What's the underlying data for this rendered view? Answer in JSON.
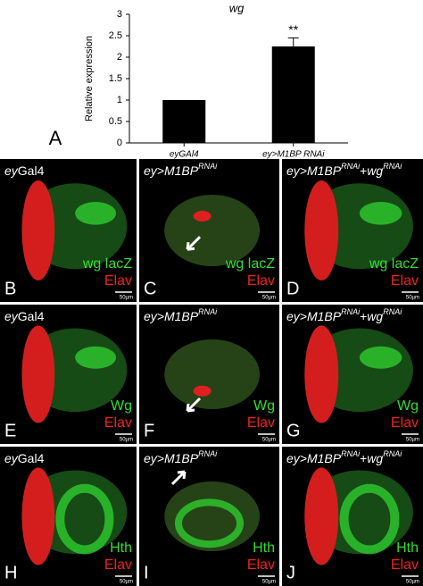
{
  "chart_data": {
    "type": "bar",
    "title": "wg",
    "panel_label": "A",
    "y_label": "Relative expression",
    "categories": [
      "eyGAl4",
      "ey>M1BP RNAi"
    ],
    "values": [
      1,
      2.25
    ],
    "errors": [
      0,
      0.2
    ],
    "color": "#000000",
    "annotations": [
      null,
      "**"
    ],
    "ylim": [
      0,
      3
    ],
    "yticks": [
      0,
      0.5,
      1,
      1.5,
      2,
      2.5,
      3
    ]
  },
  "panels": [
    {
      "letter": "B",
      "title": [
        {
          "text": "ey",
          "style": "italic"
        },
        {
          "text": "Gal4",
          "style": "normal"
        }
      ],
      "markers": [
        {
          "text": "wg lacZ",
          "color": "#33dd33"
        },
        {
          "text": "Elav",
          "color": "#ee2222"
        }
      ],
      "scale": "50µm"
    },
    {
      "letter": "C",
      "title": [
        {
          "text": "ey>M1BP",
          "style": "italic"
        },
        {
          "text": "RNAi",
          "style": "sup"
        }
      ],
      "markers": [
        {
          "text": "wg lacZ",
          "color": "#33dd33"
        },
        {
          "text": "Elav",
          "color": "#ee2222"
        }
      ],
      "scale": "50µm"
    },
    {
      "letter": "D",
      "title": [
        {
          "text": "ey>M1BP",
          "style": "italic"
        },
        {
          "text": "RNAi",
          "style": "sup"
        },
        {
          "text": "+",
          "style": "normal"
        },
        {
          "text": "wg",
          "style": "italic"
        },
        {
          "text": "RNAi",
          "style": "sup"
        }
      ],
      "markers": [
        {
          "text": "wg lacZ",
          "color": "#33dd33"
        },
        {
          "text": "Elav",
          "color": "#ee2222"
        }
      ],
      "scale": "50µm"
    },
    {
      "letter": "E",
      "title": [
        {
          "text": "ey",
          "style": "italic"
        },
        {
          "text": "Gal4",
          "style": "normal"
        }
      ],
      "markers": [
        {
          "text": "Wg",
          "color": "#33dd33"
        },
        {
          "text": "Elav",
          "color": "#ee2222"
        }
      ],
      "scale": "50µm"
    },
    {
      "letter": "F",
      "title": [
        {
          "text": "ey>M1BP",
          "style": "italic"
        },
        {
          "text": "RNAi",
          "style": "sup"
        }
      ],
      "markers": [
        {
          "text": "Wg",
          "color": "#33dd33"
        },
        {
          "text": "Elav",
          "color": "#ee2222"
        }
      ],
      "scale": "50µm"
    },
    {
      "letter": "G",
      "title": [
        {
          "text": "ey>M1BP",
          "style": "italic"
        },
        {
          "text": "RNAi",
          "style": "sup"
        },
        {
          "text": "+",
          "style": "normal"
        },
        {
          "text": "wg",
          "style": "italic"
        },
        {
          "text": "RNAi",
          "style": "sup"
        }
      ],
      "markers": [
        {
          "text": "Wg",
          "color": "#33dd33"
        },
        {
          "text": "Elav",
          "color": "#ee2222"
        }
      ],
      "scale": "50µm"
    },
    {
      "letter": "H",
      "title": [
        {
          "text": "ey",
          "style": "italic"
        },
        {
          "text": "Gal4",
          "style": "normal"
        }
      ],
      "markers": [
        {
          "text": "Hth",
          "color": "#33dd33"
        },
        {
          "text": "Elav",
          "color": "#ee2222"
        }
      ],
      "scale": "50µm"
    },
    {
      "letter": "I",
      "title": [
        {
          "text": "ey>M1BP",
          "style": "italic"
        },
        {
          "text": "RNAi",
          "style": "sup"
        }
      ],
      "markers": [
        {
          "text": "Hth",
          "color": "#33dd33"
        },
        {
          "text": "Elav",
          "color": "#ee2222"
        }
      ],
      "scale": "50µm"
    },
    {
      "letter": "J",
      "title": [
        {
          "text": "ey>M1BP",
          "style": "italic"
        },
        {
          "text": "RNAi",
          "style": "sup"
        },
        {
          "text": "+",
          "style": "normal"
        },
        {
          "text": "wg",
          "style": "italic"
        },
        {
          "text": "RNAi",
          "style": "sup"
        }
      ],
      "markers": [
        {
          "text": "Hth",
          "color": "#33dd33"
        },
        {
          "text": "Elav",
          "color": "#ee2222"
        }
      ],
      "scale": "50µm"
    }
  ]
}
